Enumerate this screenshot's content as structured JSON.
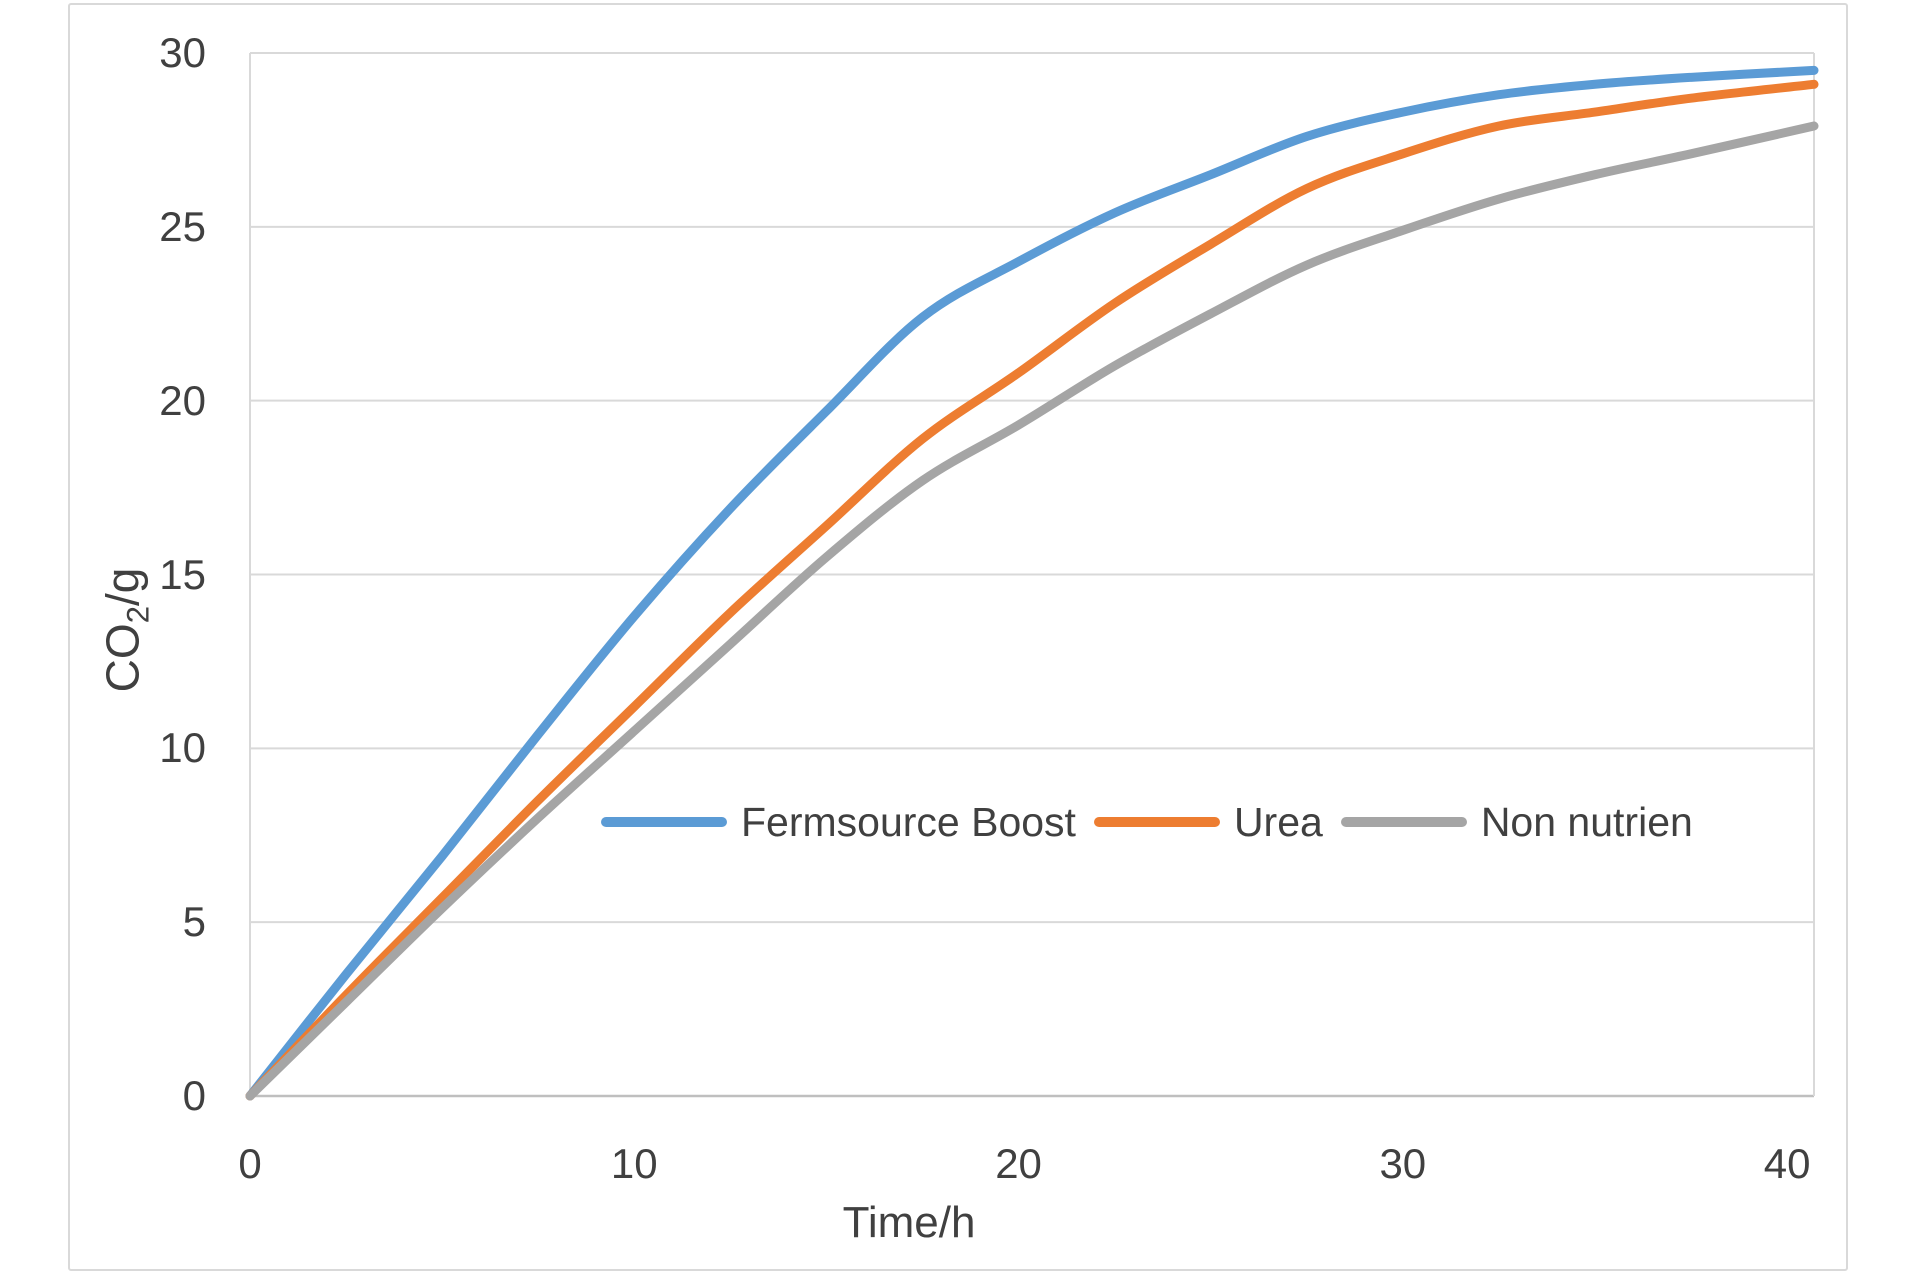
{
  "colors": {
    "background": "#ffffff",
    "frame_border": "#D9D9D9",
    "gridline": "#D9D9D9",
    "axis_line": "#BFBFBF",
    "text": "#404040"
  },
  "chart_data": {
    "type": "line",
    "title": "",
    "xlabel": "Time/h",
    "ylabel": "CO2/g",
    "ylabel_parts": {
      "main": "CO",
      "sub": "2",
      "rest": "/g"
    },
    "x": [
      0,
      2.5,
      5,
      7.5,
      10,
      12.5,
      15,
      17.5,
      20,
      22.5,
      25,
      27.5,
      30,
      32.5,
      35,
      37.5,
      40.7
    ],
    "series": [
      {
        "name": "Fermsource Boost",
        "color": "#5B9BD5",
        "values": [
          0,
          3.5,
          6.9,
          10.4,
          13.8,
          16.9,
          19.7,
          22.4,
          24.0,
          25.4,
          26.5,
          27.6,
          28.3,
          28.8,
          29.1,
          29.3,
          29.5
        ]
      },
      {
        "name": "Urea",
        "color": "#ED7D31",
        "values": [
          0,
          2.9,
          5.7,
          8.5,
          11.2,
          13.9,
          16.4,
          18.9,
          20.8,
          22.8,
          24.5,
          26.1,
          27.1,
          27.9,
          28.3,
          28.7,
          29.1
        ]
      },
      {
        "name": "Non nutrien",
        "color": "#A5A5A5",
        "values": [
          0,
          2.7,
          5.4,
          8.0,
          10.5,
          13.0,
          15.5,
          17.7,
          19.3,
          21.0,
          22.5,
          23.9,
          24.9,
          25.8,
          26.5,
          27.1,
          27.9
        ]
      }
    ],
    "xlim": [
      0,
      40.7
    ],
    "ylim": [
      0,
      30
    ],
    "xticks": [
      0,
      10,
      20,
      30,
      40
    ],
    "yticks": [
      0,
      5,
      10,
      15,
      20,
      25,
      30
    ],
    "grid": "horizontal",
    "legend_position": "inside-lower-center",
    "line_width": 9
  }
}
